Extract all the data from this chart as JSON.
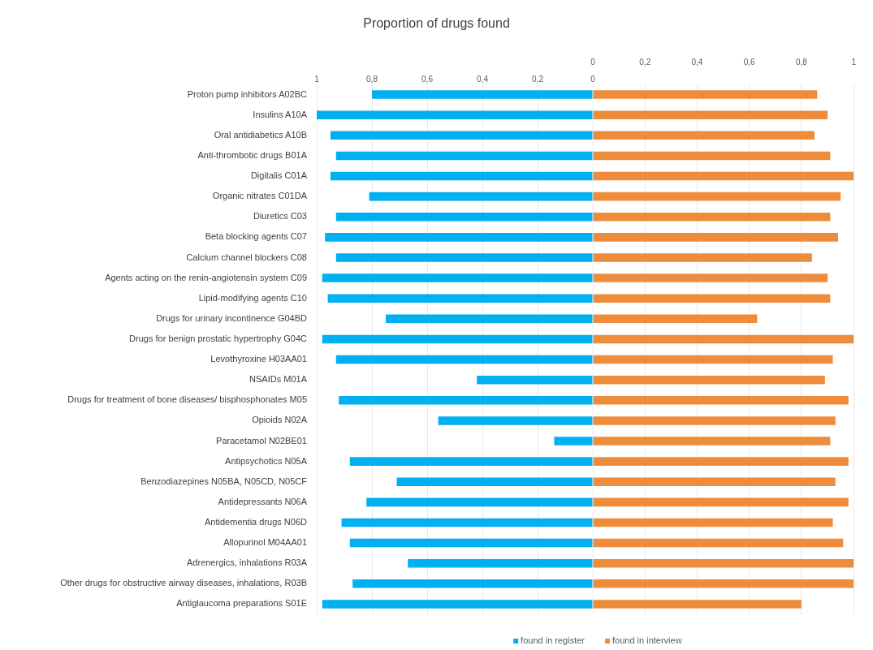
{
  "chart_data": [
    {
      "type": "bar",
      "orientation": "horizontal",
      "title": "Proportion of drugs found",
      "categories": [
        "Proton pump inhibitors A02BC",
        "Insulins A10A",
        "Oral antidiabetics A10B",
        "Anti-thrombotic drugs B01A",
        "Digitalis C01A",
        "Organic nitrates C01DA",
        "Diuretics C03",
        "Beta blocking agents C07",
        "Calcium channel blockers C08",
        "Agents acting on the renin-angiotensin system C09",
        "Lipid-modifying agents C10",
        "Drugs for urinary incontinence G04BD",
        "Drugs for benign prostatic hypertrophy G04C",
        "Levothyroxine H03AA01",
        "NSAIDs M01A",
        "Drugs for treatment of bone diseases/ bisphosphonates M05",
        "Opioids N02A",
        "Paracetamol N02BE01",
        "Antipsychotics N05A",
        "Benzodiazepines N05BA, N05CD, N05CF",
        "Antidepressants N06A",
        "Antidementia drugs N06D",
        "Allopurinol M04AA01",
        "Adrenergics, inhalations R03A",
        "Other drugs for obstructive airway diseases, inhalations, R03B",
        "Antiglaucoma preparations S01E"
      ],
      "series": [
        {
          "name": "found in register",
          "color": "#00b0f0",
          "values": [
            0.8,
            1.0,
            0.95,
            0.93,
            0.95,
            0.81,
            0.93,
            0.97,
            0.93,
            0.98,
            0.96,
            0.75,
            0.98,
            0.93,
            0.42,
            0.92,
            0.56,
            0.14,
            0.88,
            0.71,
            0.82,
            0.91,
            0.88,
            0.67,
            0.87,
            0.98
          ]
        }
      ],
      "xlim": [
        1,
        0
      ],
      "xticks": [
        {
          "value": 1,
          "label": "1"
        },
        {
          "value": 0.8,
          "label": "0,8"
        },
        {
          "value": 0.6,
          "label": "0,6"
        },
        {
          "value": 0.4,
          "label": "0,4"
        },
        {
          "value": 0.2,
          "label": "0,2"
        },
        {
          "value": 0,
          "label": "0"
        }
      ],
      "grid": "x",
      "legend": "bottom right"
    },
    {
      "type": "bar",
      "orientation": "horizontal",
      "categories": [
        null,
        null,
        null,
        null,
        null,
        null,
        null,
        null,
        null,
        null,
        null,
        null,
        null,
        null,
        null,
        null,
        null,
        null,
        null,
        null,
        null,
        null,
        null,
        null,
        null,
        null
      ],
      "series": [
        {
          "name": "found in interview",
          "color": "#ef8c3b",
          "values": [
            0.86,
            0.9,
            0.85,
            0.91,
            1.0,
            0.95,
            0.91,
            0.94,
            0.84,
            0.9,
            0.91,
            0.63,
            1.0,
            0.92,
            0.89,
            0.98,
            0.93,
            0.91,
            0.98,
            0.93,
            0.98,
            0.92,
            0.96,
            1.0,
            1.0,
            0.8
          ]
        }
      ],
      "xlim": [
        0,
        1
      ],
      "xticks": [
        {
          "value": 0,
          "label": "0"
        },
        {
          "value": 0.2,
          "label": "0,2"
        },
        {
          "value": 0.4,
          "label": "0,4"
        },
        {
          "value": 0.6,
          "label": "0,6"
        },
        {
          "value": 0.8,
          "label": "0,8"
        },
        {
          "value": 1,
          "label": "1"
        }
      ],
      "grid": "x",
      "legend": "bottom left",
      "tick_labels": "x"
    }
  ]
}
